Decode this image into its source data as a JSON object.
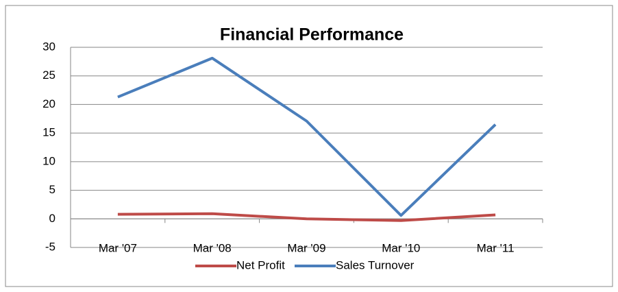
{
  "chart_data": {
    "type": "line",
    "title": "Financial Performance",
    "categories": [
      "Mar '07",
      "Mar '08",
      "Mar '09",
      "Mar '10",
      "Mar '11"
    ],
    "series": [
      {
        "name": "Net Profit",
        "color": "#be4b48",
        "values": [
          0.8,
          0.9,
          0.0,
          -0.3,
          0.7
        ]
      },
      {
        "name": "Sales Turnover",
        "color": "#4a7ebb",
        "values": [
          21.3,
          28.1,
          17.1,
          0.6,
          16.5
        ]
      }
    ],
    "ylim": [
      -5,
      30
    ],
    "yticks": [
      -5,
      0,
      5,
      10,
      15,
      20,
      25,
      30
    ],
    "grid": true,
    "legend": "bottom"
  }
}
